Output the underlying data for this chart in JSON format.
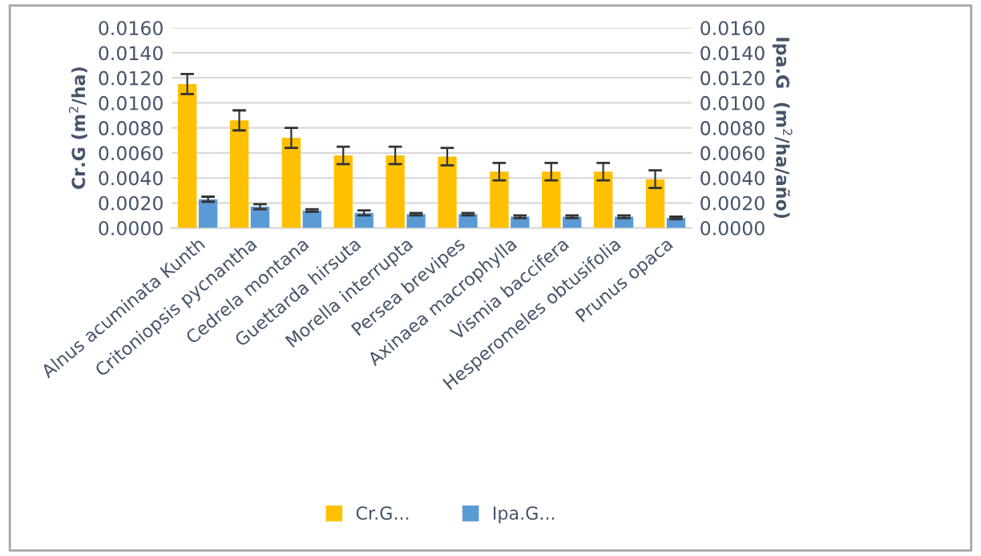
{
  "chart_data": {
    "type": "bar",
    "ylabel": "Cr.G (m$^{2}$/ha)",
    "y2label": "Ipa.G  (m$^{2}$/ha/año)",
    "categories": [
      "Alnus acuminata Kunth",
      "Critoniopsis pycnantha",
      "Cedrela montana",
      "Guettarda hirsuta",
      "Morella interrupta",
      "Persea brevipes",
      "Axinaea macrophylla",
      "Vismia baccifera",
      "Hesperomeles obtusifolia",
      "Prunus opaca"
    ],
    "series": [
      {
        "name": "Cr.G...",
        "color": "#ffc000",
        "values": [
          0.0115,
          0.0086,
          0.0072,
          0.0058,
          0.0058,
          0.0057,
          0.0045,
          0.0045,
          0.0045,
          0.0039
        ],
        "errors": [
          0.0008,
          0.0008,
          0.0008,
          0.0007,
          0.0007,
          0.0007,
          0.0007,
          0.0007,
          0.0007,
          0.0007
        ]
      },
      {
        "name": "Ipa.G...",
        "color": "#5b9bd5",
        "axis": "y2",
        "values": [
          0.0023,
          0.0017,
          0.0014,
          0.0012,
          0.0011,
          0.0011,
          0.0009,
          0.0009,
          0.0009,
          0.0008
        ],
        "errors": [
          0.0002,
          0.0002,
          0.0001,
          0.0002,
          0.0001,
          0.0001,
          0.0001,
          0.0001,
          0.0001,
          0.0001
        ]
      }
    ],
    "ylim": [
      0,
      0.016
    ],
    "yticks": [
      {
        "value": 0,
        "label": "0.0000"
      },
      {
        "value": 0.002,
        "label": "0.0020"
      },
      {
        "value": 0.004,
        "label": "0.0040"
      },
      {
        "value": 0.006,
        "label": "0.0060"
      },
      {
        "value": 0.008,
        "label": "0.0080"
      },
      {
        "value": 0.01,
        "label": "0.0100"
      },
      {
        "value": 0.012,
        "label": "0.0120"
      },
      {
        "value": 0.014,
        "label": "0.0140"
      },
      {
        "value": 0.016,
        "label": "0.0160"
      }
    ],
    "y2lim": [
      0,
      0.016
    ],
    "y2ticks": [
      {
        "value": 0,
        "label": "0.0000"
      },
      {
        "value": 0.002,
        "label": "0.0020"
      },
      {
        "value": 0.004,
        "label": "0.0040"
      },
      {
        "value": 0.006,
        "label": "0.0060"
      },
      {
        "value": 0.008,
        "label": "0.0080"
      },
      {
        "value": 0.01,
        "label": "0.0100"
      },
      {
        "value": 0.012,
        "label": "0.0120"
      },
      {
        "value": 0.014,
        "label": "0.0140"
      },
      {
        "value": 0.016,
        "label": "0.0160"
      }
    ],
    "grid": "y",
    "legend": "bottom"
  }
}
